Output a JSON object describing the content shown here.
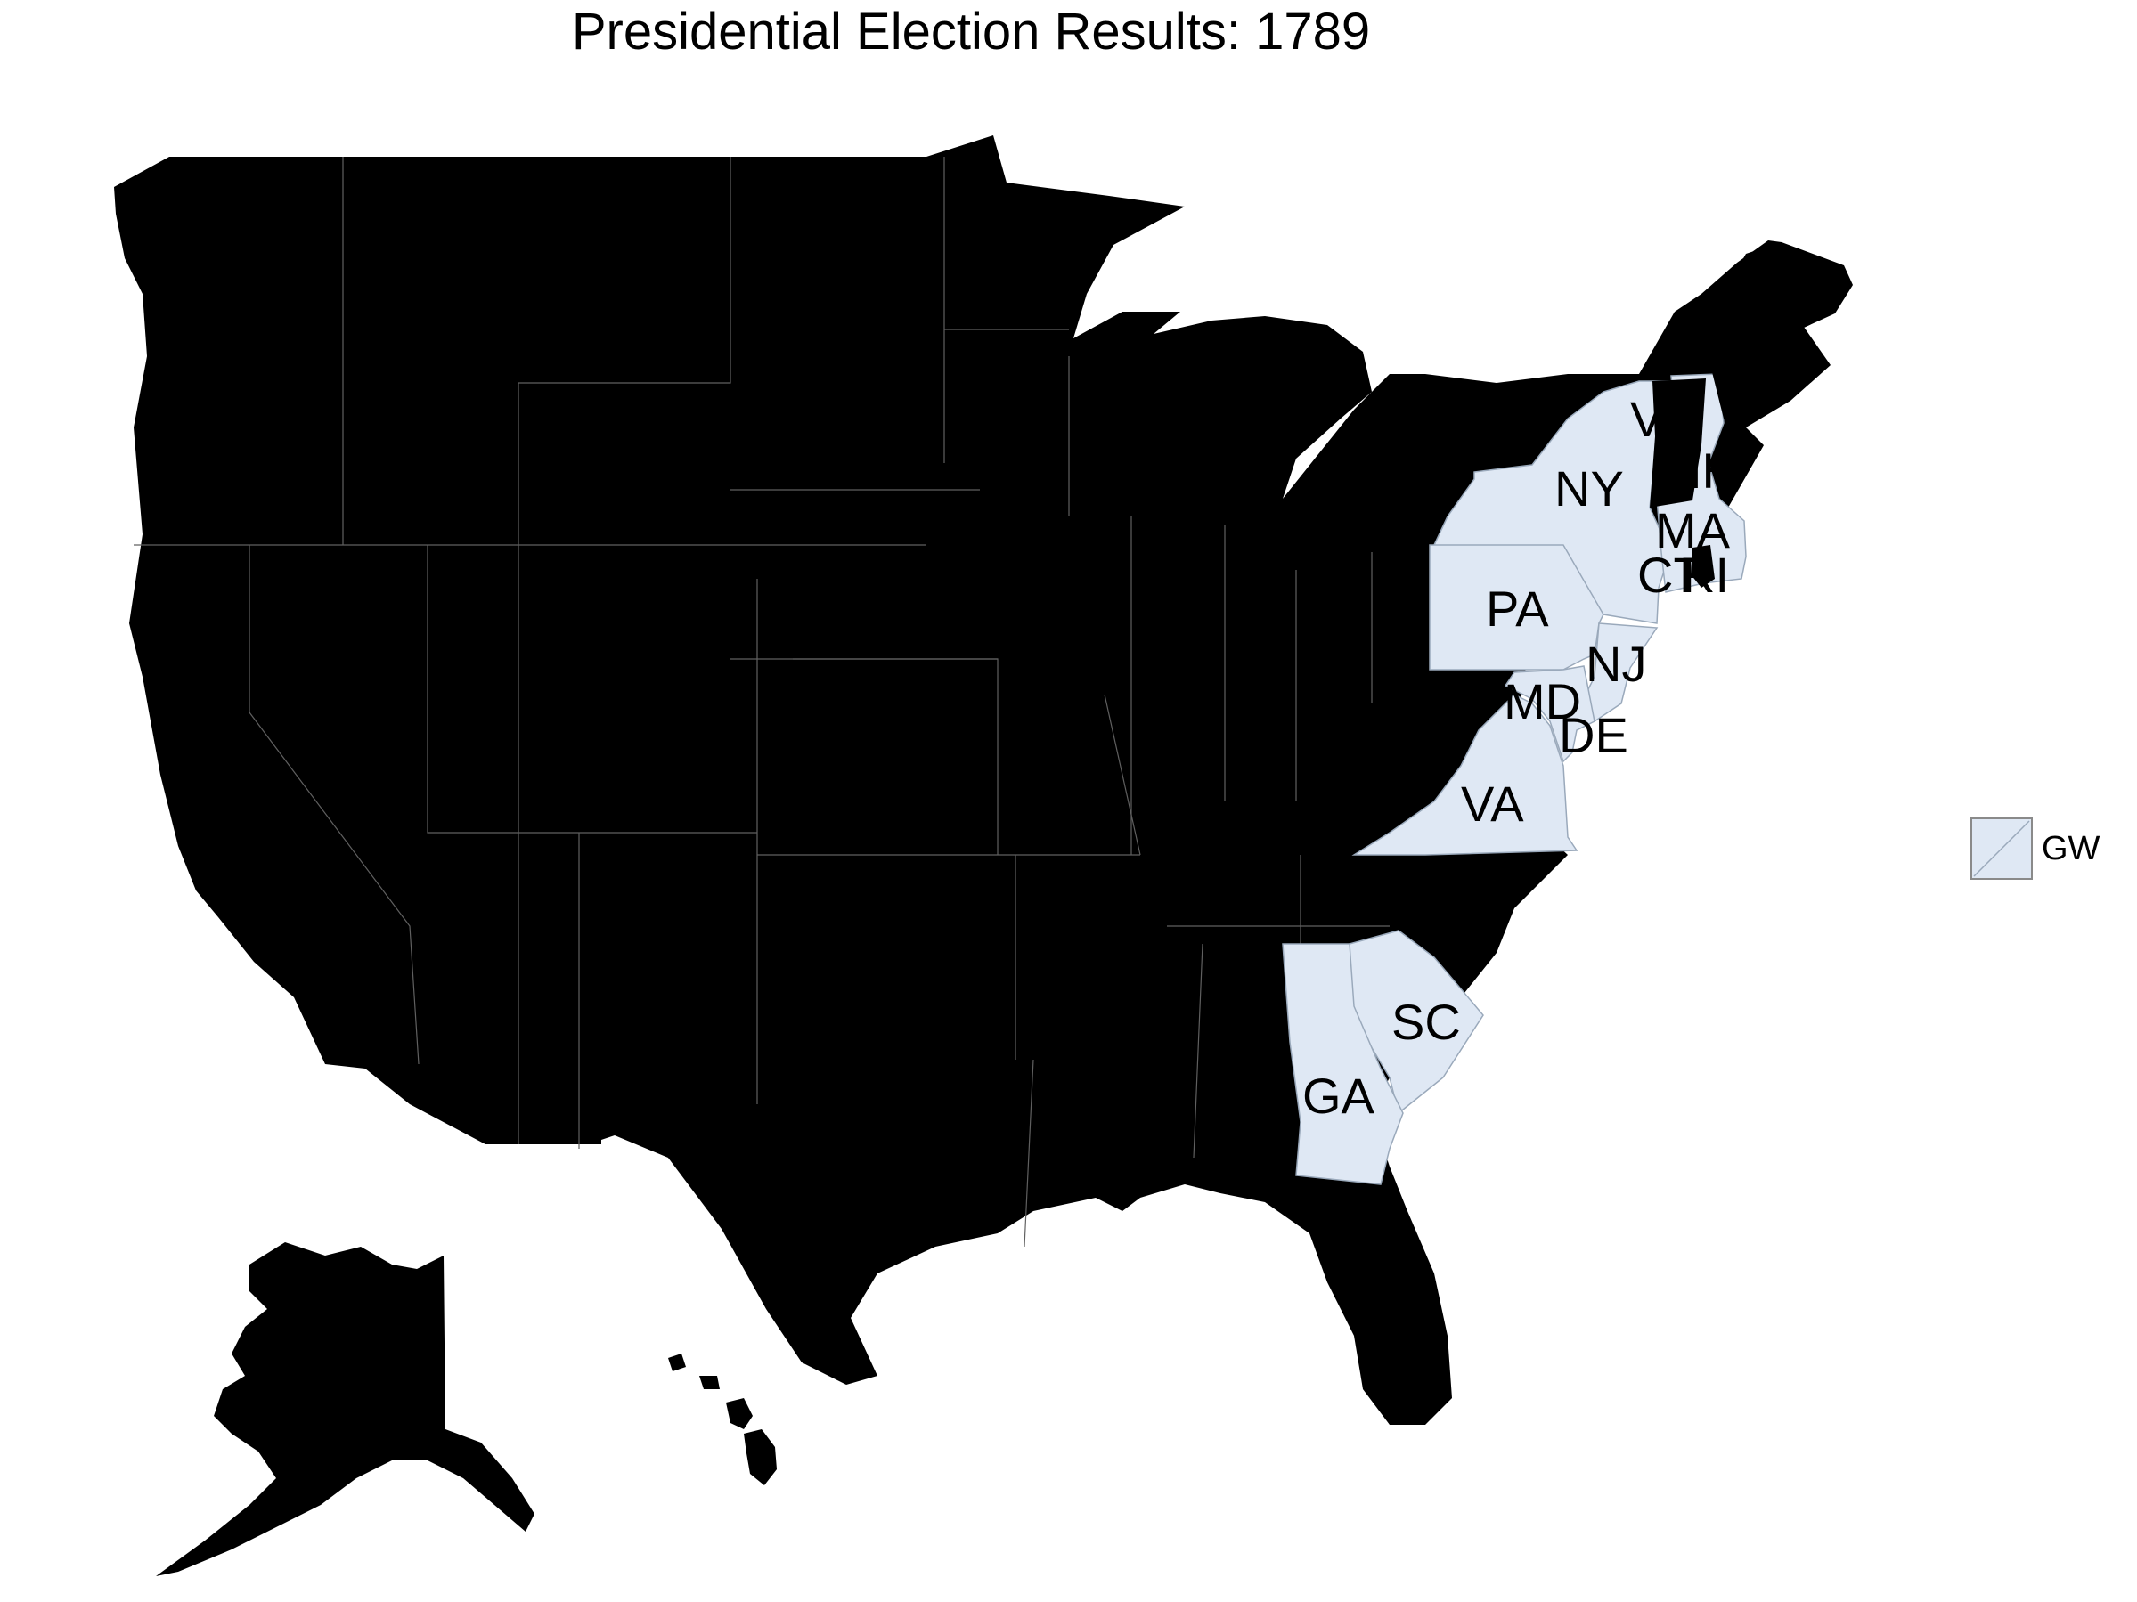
{
  "title": "Presidential Election Results: 1789",
  "colors": {
    "winner": "#dfe8f4",
    "no_vote": "#000000",
    "border": "#9aa9bb",
    "background": "#ffffff"
  },
  "legend": {
    "items": [
      {
        "key": "GW",
        "label": "GW",
        "color": "#dfe8f4"
      }
    ]
  },
  "state_labels": [
    "NY",
    "VT",
    "NH",
    "MA",
    "CT",
    "RI",
    "PA",
    "NJ",
    "MD",
    "DE",
    "VA",
    "SC",
    "GA"
  ],
  "states_won_by_GW": [
    "NY",
    "NH",
    "MA",
    "CT",
    "PA",
    "NJ",
    "MD",
    "DE",
    "VA",
    "SC",
    "GA"
  ],
  "states_not_voting": [
    "VT",
    "RI"
  ]
}
